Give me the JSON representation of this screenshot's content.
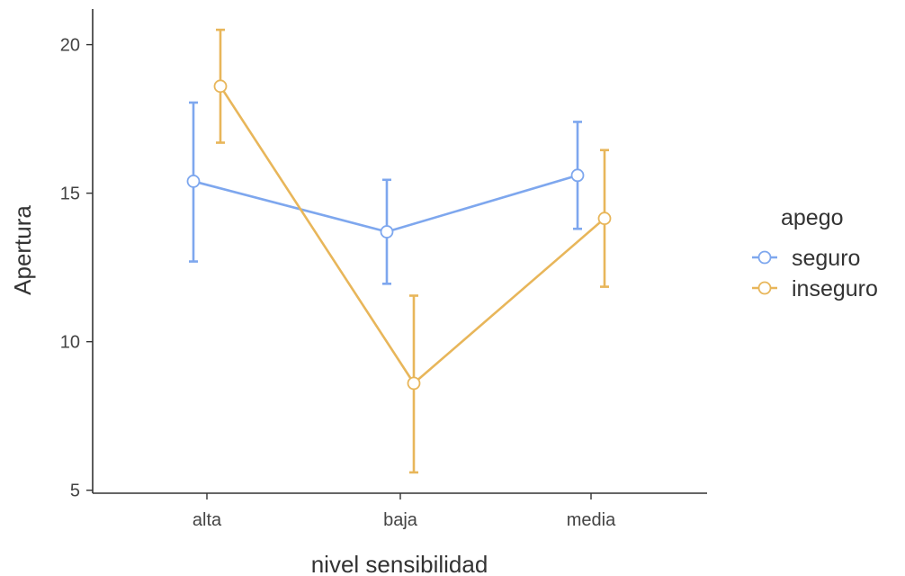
{
  "chart_data": {
    "type": "line",
    "xlabel": "nivel sensibilidad",
    "ylabel": "Apertura",
    "categories": [
      "alta",
      "baja",
      "media"
    ],
    "yticks": [
      5,
      10,
      15,
      20
    ],
    "ylim": [
      4.9,
      21.2
    ],
    "legend": {
      "title": "apego",
      "position": "right"
    },
    "series": [
      {
        "name": "seguro",
        "color": "#7ea7ee",
        "values": [
          15.4,
          13.7,
          15.6
        ],
        "lower": [
          12.7,
          11.95,
          13.8
        ],
        "upper": [
          18.05,
          15.45,
          17.4
        ]
      },
      {
        "name": "inseguro",
        "color": "#e8b65a",
        "values": [
          18.6,
          8.6,
          14.15
        ],
        "lower": [
          16.7,
          5.6,
          11.85
        ],
        "upper": [
          20.5,
          11.55,
          16.45
        ]
      }
    ]
  }
}
